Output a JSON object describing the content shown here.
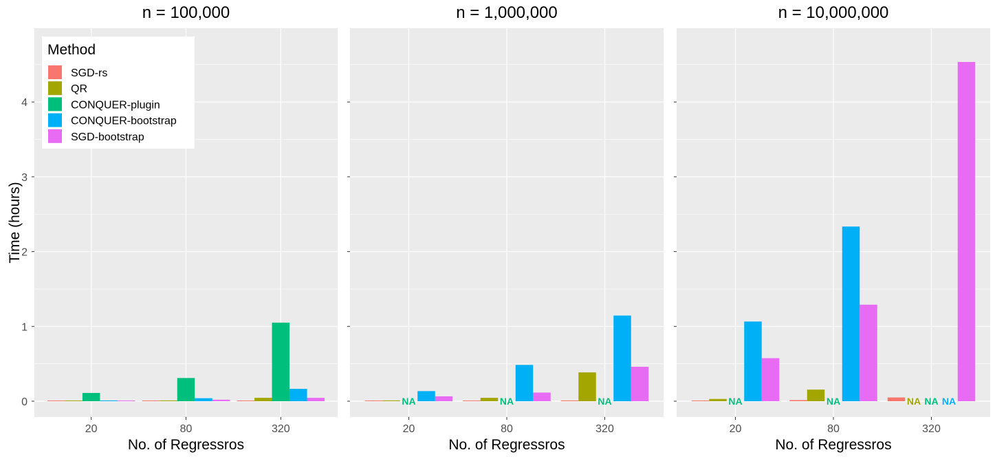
{
  "chart_data": {
    "type": "bar",
    "ylabel": "Time (hours)",
    "ylim": [
      -0.22,
      4.98
    ],
    "yticks": [
      0,
      1,
      2,
      3,
      4
    ],
    "grid": true,
    "legend": {
      "title": "Method",
      "position": "top-left (inside first panel)",
      "entries": [
        {
          "name": "SGD-rs",
          "color": "#F8766D"
        },
        {
          "name": "QR",
          "color": "#A3A500"
        },
        {
          "name": "CONQUER-plugin",
          "color": "#00BF7D"
        },
        {
          "name": "CONQUER-bootstrap",
          "color": "#00B0F6"
        },
        {
          "name": "SGD-bootstrap",
          "color": "#E76BF3"
        }
      ]
    },
    "na_label": "NA",
    "panels": [
      {
        "title": "n = 100,000",
        "xlabel": "No. of Regressros",
        "categories": [
          "20",
          "80",
          "320"
        ],
        "series": [
          {
            "name": "SGD-rs",
            "values": [
              0.002,
              0.004,
              0.006
            ]
          },
          {
            "name": "QR",
            "values": [
              0.003,
              0.01,
              0.045
            ]
          },
          {
            "name": "CONQUER-plugin",
            "values": [
              0.11,
              0.31,
              1.05
            ]
          },
          {
            "name": "CONQUER-bootstrap",
            "values": [
              0.01,
              0.04,
              0.165
            ]
          },
          {
            "name": "SGD-bootstrap",
            "values": [
              0.005,
              0.02,
              0.045
            ]
          }
        ]
      },
      {
        "title": "n = 1,000,000",
        "xlabel": "No. of Regressros",
        "categories": [
          "20",
          "80",
          "320"
        ],
        "series": [
          {
            "name": "SGD-rs",
            "values": [
              0.003,
              0.007,
              0.01
            ]
          },
          {
            "name": "QR",
            "values": [
              0.01,
              0.045,
              0.385
            ]
          },
          {
            "name": "CONQUER-plugin",
            "values": [
              null,
              null,
              null
            ]
          },
          {
            "name": "CONQUER-bootstrap",
            "values": [
              0.135,
              0.485,
              1.145
            ]
          },
          {
            "name": "SGD-bootstrap",
            "values": [
              0.065,
              0.115,
              0.46
            ]
          }
        ]
      },
      {
        "title": "n = 10,000,000",
        "xlabel": "No. of Regressros",
        "categories": [
          "20",
          "80",
          "320"
        ],
        "series": [
          {
            "name": "SGD-rs",
            "values": [
              0.005,
              0.015,
              0.05
            ]
          },
          {
            "name": "QR",
            "values": [
              0.03,
              0.155,
              null
            ]
          },
          {
            "name": "CONQUER-plugin",
            "values": [
              null,
              null,
              null
            ]
          },
          {
            "name": "CONQUER-bootstrap",
            "values": [
              1.065,
              2.335,
              null
            ]
          },
          {
            "name": "SGD-bootstrap",
            "values": [
              0.575,
              1.29,
              4.535
            ]
          }
        ]
      }
    ]
  }
}
